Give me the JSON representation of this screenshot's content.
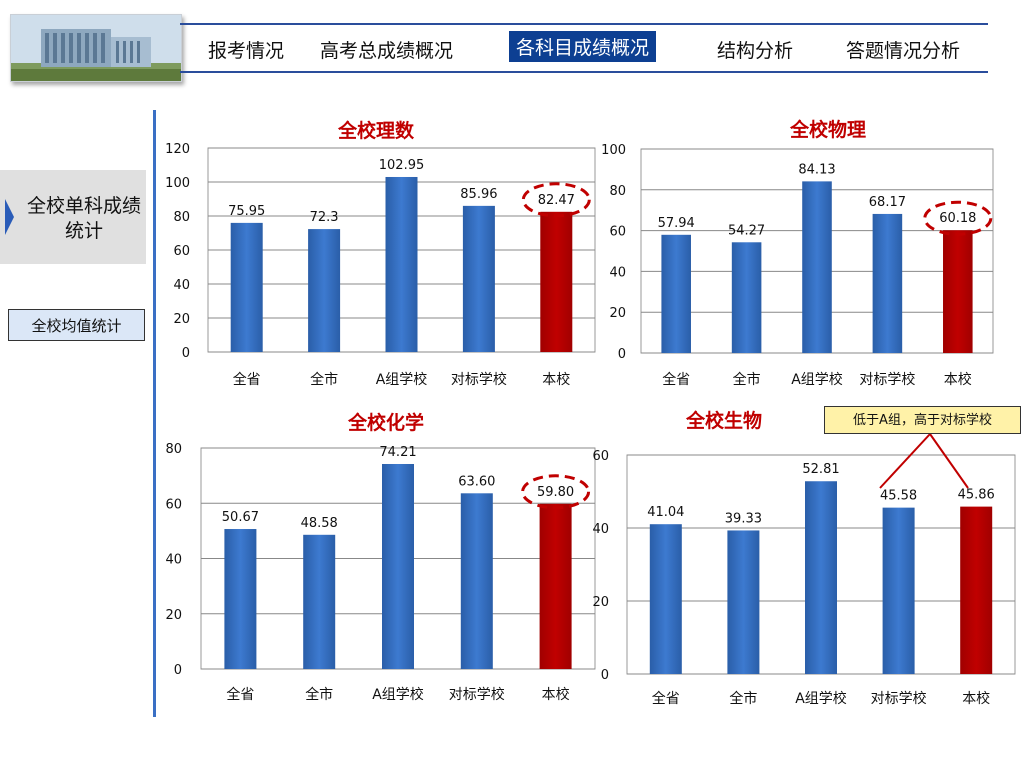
{
  "nav": {
    "items": [
      "报考情况",
      "高考总成绩概况",
      "各科目成绩概况",
      "结构分析",
      "答题情况分析"
    ],
    "active_index": 2
  },
  "sidebar": {
    "section_label": "全校单科成绩统计",
    "button_label": "全校均值统计"
  },
  "colors": {
    "bar_blue": "#3d7ad0",
    "bar_red": "#c00000",
    "highlight_ellipse": "#c00000",
    "title_red": "#c00000"
  },
  "annotation": {
    "text": "低于A组，高于对标学校"
  },
  "chart_data": [
    {
      "type": "bar",
      "title": "全校理数",
      "categories": [
        "全省",
        "全市",
        "A组学校",
        "对标学校",
        "本校"
      ],
      "values": [
        75.95,
        72.3,
        102.95,
        85.96,
        82.47
      ],
      "value_labels": [
        "75.95",
        "72.3",
        "102.95",
        "85.96",
        "82.47"
      ],
      "ylim": [
        0,
        120
      ],
      "yticks": [
        0,
        20,
        40,
        60,
        80,
        100,
        120
      ],
      "grid": true,
      "highlight": "本校"
    },
    {
      "type": "bar",
      "title": "全校物理",
      "categories": [
        "全省",
        "全市",
        "A组学校",
        "对标学校",
        "本校"
      ],
      "values": [
        57.94,
        54.27,
        84.13,
        68.17,
        60.18
      ],
      "value_labels": [
        "57.94",
        "54.27",
        "84.13",
        "68.17",
        "60.18"
      ],
      "ylim": [
        0,
        100
      ],
      "yticks": [
        0,
        20,
        40,
        60,
        80,
        100
      ],
      "grid": true,
      "highlight": "本校"
    },
    {
      "type": "bar",
      "title": "全校化学",
      "categories": [
        "全省",
        "全市",
        "A组学校",
        "对标学校",
        "本校"
      ],
      "values": [
        50.67,
        48.58,
        74.21,
        63.6,
        59.8
      ],
      "value_labels": [
        "50.67",
        "48.58",
        "74.21",
        "63.60",
        "59.80"
      ],
      "ylim": [
        0,
        80
      ],
      "yticks": [
        0,
        20,
        40,
        60,
        80
      ],
      "grid": true,
      "highlight": "本校"
    },
    {
      "type": "bar",
      "title": "全校生物",
      "categories": [
        "全省",
        "全市",
        "A组学校",
        "对标学校",
        "本校"
      ],
      "values": [
        41.04,
        39.33,
        52.81,
        45.58,
        45.86
      ],
      "value_labels": [
        "41.04",
        "39.33",
        "52.81",
        "45.58",
        "45.86"
      ],
      "ylim": [
        0,
        60
      ],
      "yticks": [
        0,
        20,
        40,
        60
      ],
      "grid": true,
      "highlight": "本校"
    }
  ]
}
